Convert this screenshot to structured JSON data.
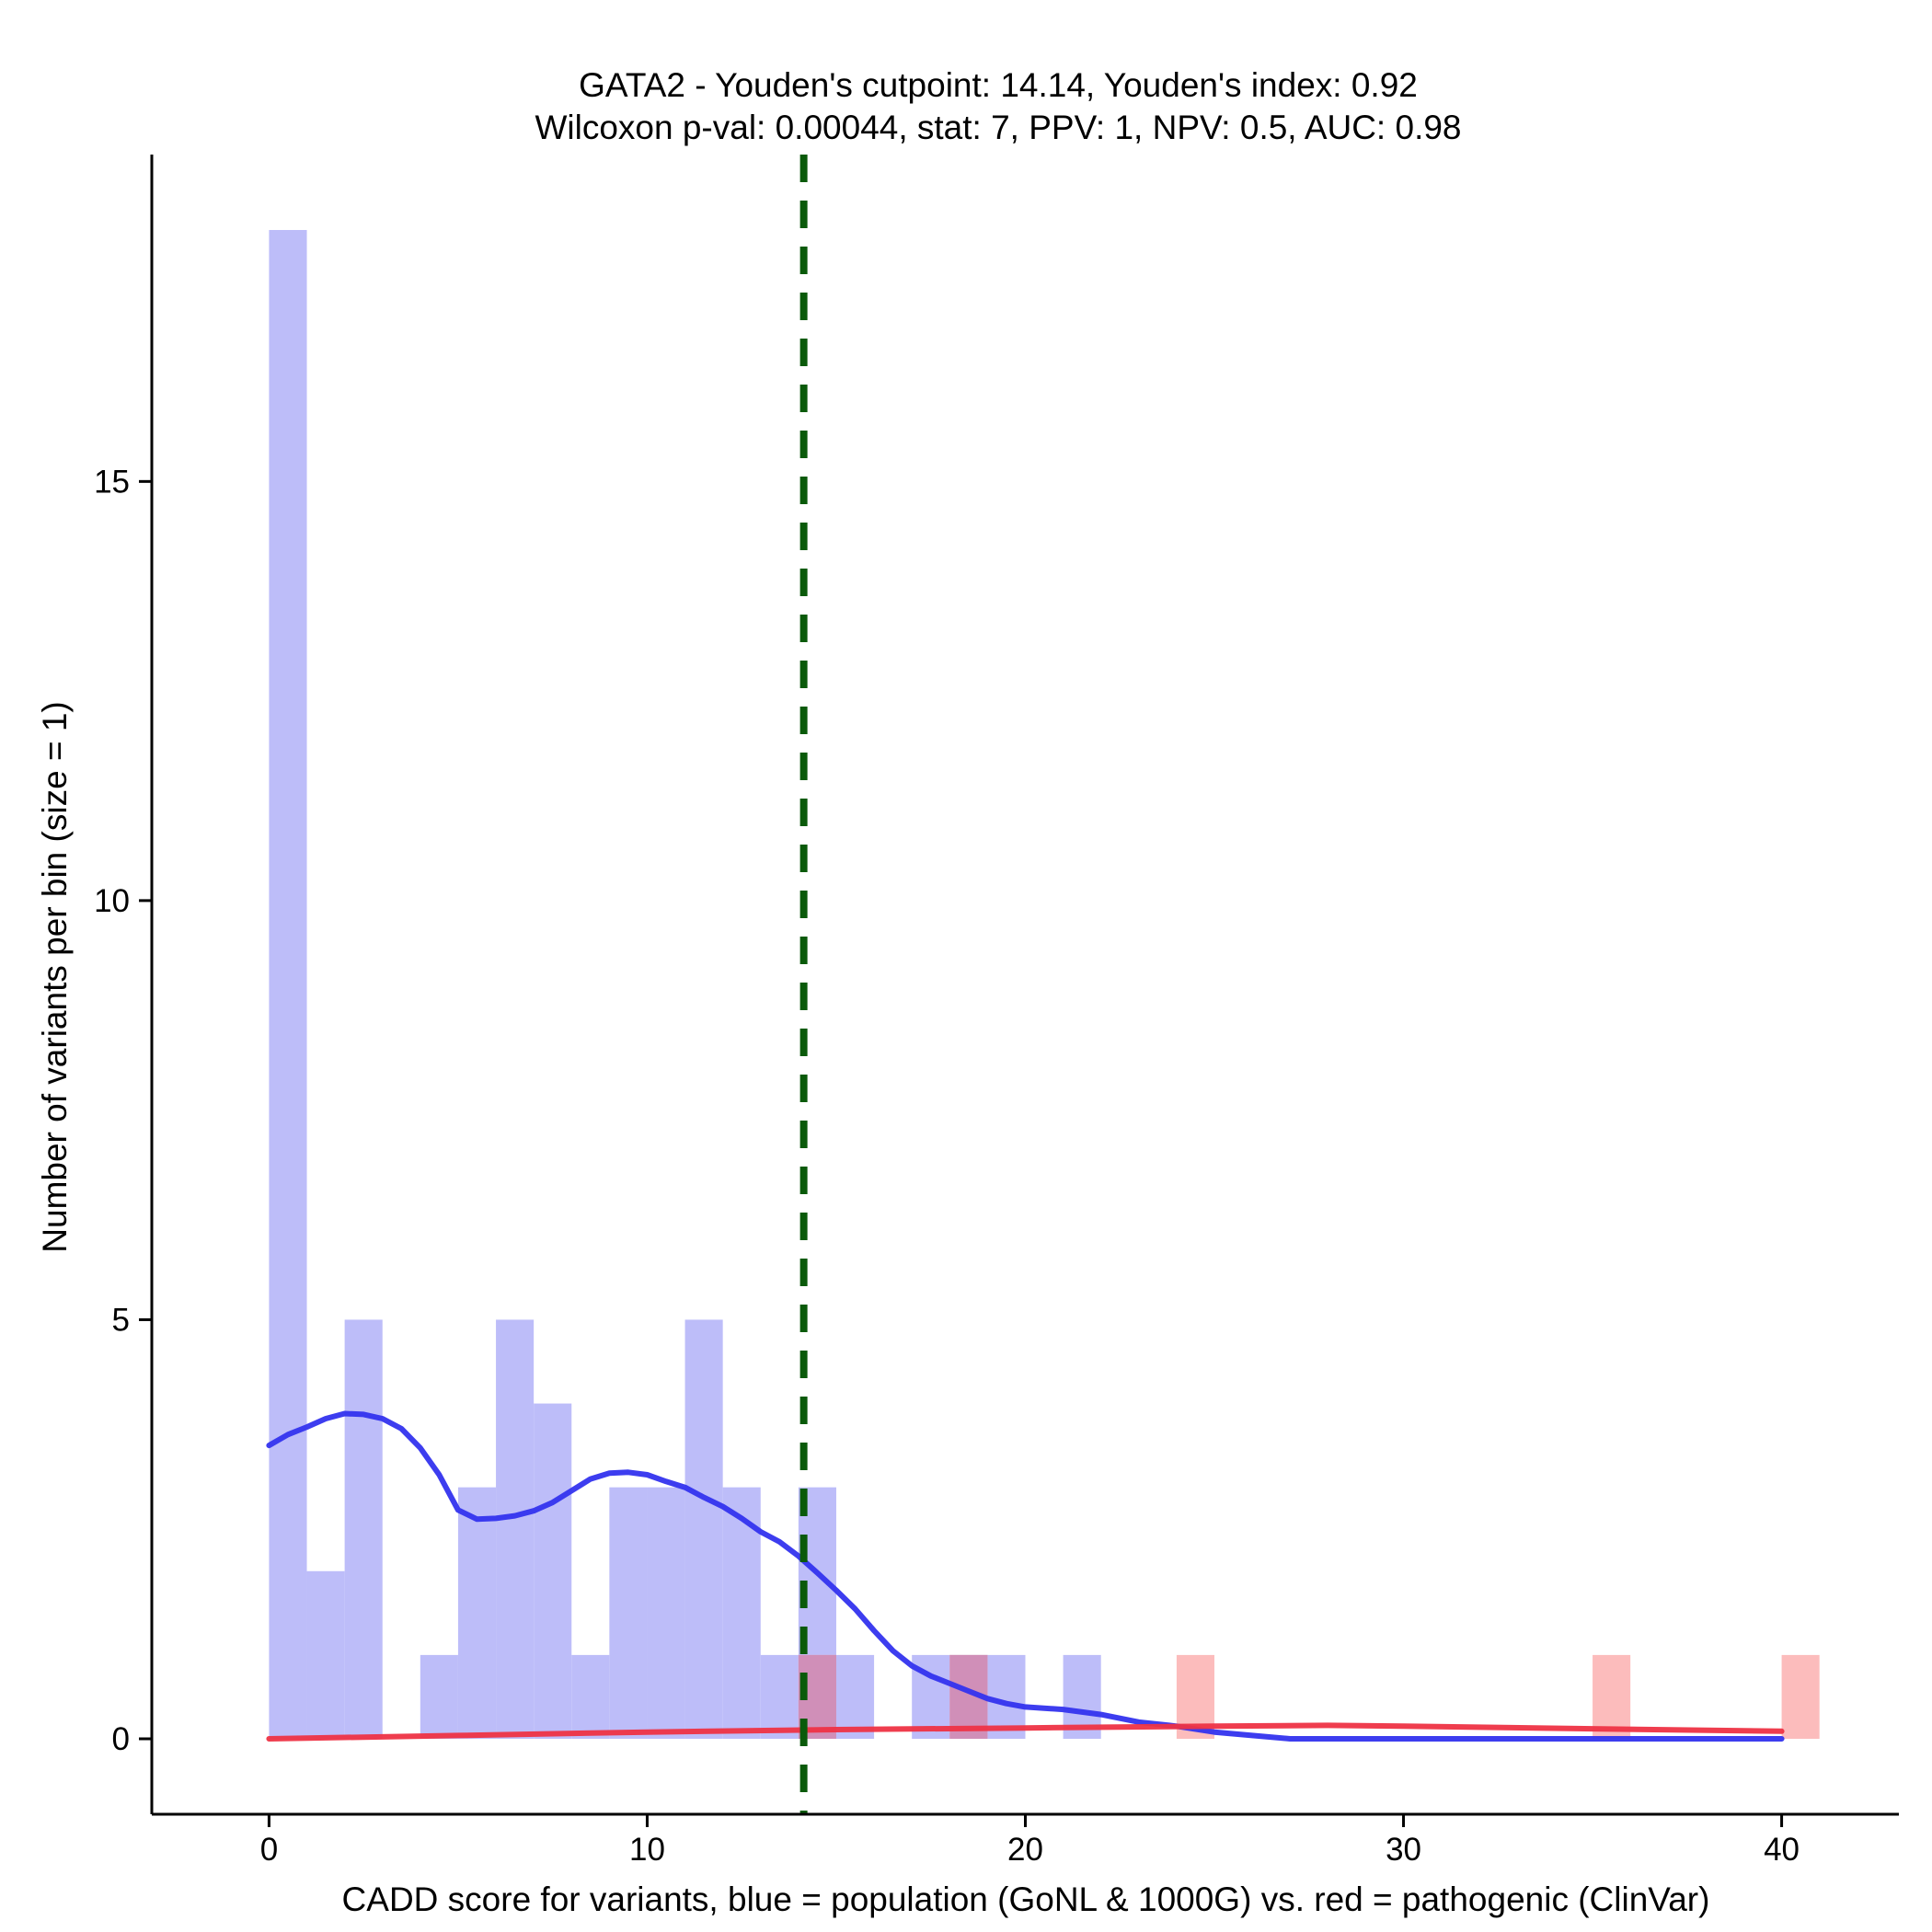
{
  "chart_data": {
    "type": "bar",
    "title": "GATA2 - Youden's cutpoint: 14.14, Youden's index: 0.92",
    "subtitle": "Wilcoxon p-val: 0.00044, stat: 7, PPV: 1, NPV: 0.5, AUC: 0.98",
    "xlabel": "CADD score for variants, blue = population (GoNL & 1000G) vs. red = pathogenic (ClinVar)",
    "ylabel": "Number of variants per bin (size = 1)",
    "xlim": [
      -3.1,
      43.1
    ],
    "ylim": [
      -0.9,
      18.9
    ],
    "x_ticks": [
      0,
      10,
      20,
      30,
      40
    ],
    "x_tick_labels": [
      "0",
      "10",
      "20",
      "30",
      "40"
    ],
    "y_ticks": [
      0,
      5,
      10,
      15
    ],
    "y_tick_labels": [
      "0",
      "5",
      "10",
      "15"
    ],
    "bin_size": 1,
    "cutpoint": 14.14,
    "colors": {
      "population_bar": "#bdbdf9",
      "pathogenic_bar": "#fcbcbc",
      "overlap_bar": "#d08fb8",
      "population_density": "#3333ee",
      "pathogenic_density": "#ee3344",
      "cutpoint_line": "#0a5a0a"
    },
    "series": [
      {
        "name": "population (GoNL & 1000G)",
        "bins": [
          {
            "start": 0,
            "count": 18
          },
          {
            "start": 1,
            "count": 2
          },
          {
            "start": 2,
            "count": 5
          },
          {
            "start": 4,
            "count": 1
          },
          {
            "start": 5,
            "count": 3
          },
          {
            "start": 6,
            "count": 5
          },
          {
            "start": 7,
            "count": 4
          },
          {
            "start": 8,
            "count": 1
          },
          {
            "start": 9,
            "count": 3
          },
          {
            "start": 10,
            "count": 3
          },
          {
            "start": 11,
            "count": 5
          },
          {
            "start": 12,
            "count": 3
          },
          {
            "start": 13,
            "count": 1
          },
          {
            "start": 14,
            "count": 3
          },
          {
            "start": 15,
            "count": 1
          },
          {
            "start": 17,
            "count": 1
          },
          {
            "start": 18,
            "count": 1
          },
          {
            "start": 19,
            "count": 1
          },
          {
            "start": 21,
            "count": 1
          }
        ]
      },
      {
        "name": "pathogenic (ClinVar)",
        "bins": [
          {
            "start": 14,
            "count": 1
          },
          {
            "start": 18,
            "count": 1
          },
          {
            "start": 24,
            "count": 1
          },
          {
            "start": 35,
            "count": 1
          },
          {
            "start": 40,
            "count": 1
          }
        ]
      }
    ],
    "density_curves": [
      {
        "name": "population density (scaled)",
        "x": [
          0,
          0.5,
          1,
          1.5,
          2,
          2.5,
          3,
          3.5,
          4,
          4.5,
          5,
          5.5,
          6,
          6.5,
          7,
          7.5,
          8,
          8.5,
          9,
          9.5,
          10,
          10.5,
          11,
          11.5,
          12,
          12.5,
          13,
          13.5,
          14,
          14.5,
          15,
          15.5,
          16,
          16.5,
          17,
          17.5,
          18,
          18.5,
          19,
          19.5,
          20,
          21,
          22,
          23,
          24,
          25,
          26,
          27,
          28,
          30,
          35,
          40
        ],
        "y": [
          3.5,
          3.63,
          3.72,
          3.82,
          3.88,
          3.87,
          3.82,
          3.7,
          3.47,
          3.15,
          2.73,
          2.62,
          2.63,
          2.66,
          2.72,
          2.82,
          2.96,
          3.1,
          3.17,
          3.18,
          3.15,
          3.07,
          3.0,
          2.88,
          2.77,
          2.63,
          2.47,
          2.35,
          2.18,
          1.98,
          1.77,
          1.55,
          1.29,
          1.05,
          0.87,
          0.75,
          0.66,
          0.57,
          0.48,
          0.42,
          0.38,
          0.35,
          0.29,
          0.2,
          0.15,
          0.08,
          0.04,
          0.0,
          0.0,
          0.0,
          0.0,
          0.0
        ]
      },
      {
        "name": "pathogenic density (scaled)",
        "x": [
          0,
          5,
          10,
          15,
          20,
          25,
          28,
          30,
          35,
          40
        ],
        "y": [
          0.0,
          0.04,
          0.08,
          0.11,
          0.13,
          0.15,
          0.16,
          0.15,
          0.12,
          0.09
        ]
      }
    ]
  }
}
